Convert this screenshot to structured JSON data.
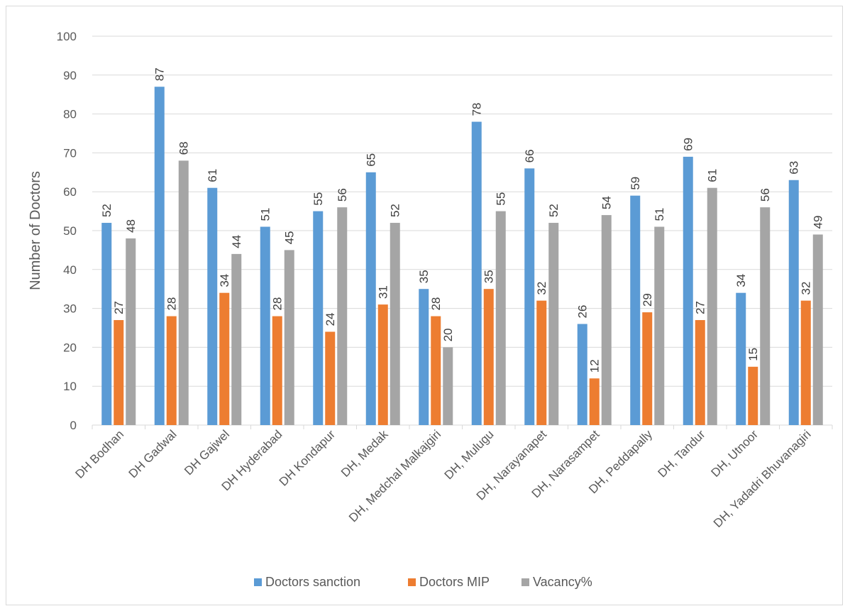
{
  "chart_data": {
    "type": "bar",
    "title": "",
    "xlabel": "",
    "ylabel": "Number of Doctors",
    "ylim": [
      0,
      100
    ],
    "yticks": [
      0,
      10,
      20,
      30,
      40,
      50,
      60,
      70,
      80,
      90,
      100
    ],
    "grid": "horizontal",
    "legend_position": "bottom",
    "categories": [
      "DH Bodhan",
      "DH Gadwal",
      "DH Gajwel",
      "DH Hyderabad",
      "DH Kondapur",
      "DH, Medak",
      "DH, Medchal Malkajgiri",
      "DH, Mulugu",
      "DH, Narayanapet",
      "DH, Narasampet",
      "DH, Peddapally",
      "DH, Tandur",
      "DH, Utnoor",
      "DH, Yadadri Bhuvanagiri"
    ],
    "series": [
      {
        "name": "Doctors sanction",
        "color": "#5B9BD5",
        "values": [
          52,
          87,
          61,
          51,
          55,
          65,
          35,
          78,
          66,
          26,
          59,
          69,
          34,
          63
        ]
      },
      {
        "name": "Doctors MIP",
        "color": "#ED7D31",
        "values": [
          27,
          28,
          34,
          28,
          24,
          31,
          28,
          35,
          32,
          12,
          29,
          27,
          15,
          32
        ]
      },
      {
        "name": "Vacancy%",
        "color": "#A5A5A5",
        "values": [
          48,
          68,
          44,
          45,
          56,
          52,
          20,
          55,
          52,
          54,
          51,
          61,
          56,
          49
        ]
      }
    ]
  }
}
